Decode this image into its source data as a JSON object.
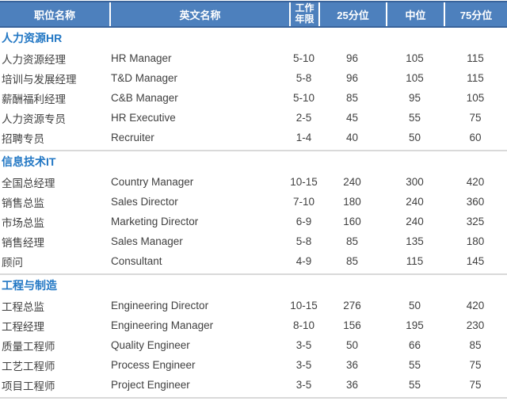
{
  "colors": {
    "header_fill": "#4d80bd",
    "header_edge": "#38639b",
    "header_divider": "#ffffff",
    "section_title_text": "#2277c4",
    "body_text": "#404040",
    "divider_line": "#d9d9d9"
  },
  "table": {
    "columns": [
      {
        "label": "职位名称"
      },
      {
        "label": "英文名称"
      },
      {
        "label": "工作年限"
      },
      {
        "label": "25分位"
      },
      {
        "label": "中位"
      },
      {
        "label": "75分位"
      }
    ],
    "sections": [
      {
        "name": "人力资源HR",
        "rows": [
          [
            "人力资源经理",
            "HR Manager",
            "5-10",
            "96",
            "105",
            "115"
          ],
          [
            "培训与发展经理",
            "T&D Manager",
            "5-8",
            "96",
            "105",
            "115"
          ],
          [
            "薪酬福利经理",
            "C&B Manager",
            "5-10",
            "85",
            "95",
            "105"
          ],
          [
            "人力资源专员",
            "HR Executive",
            "2-5",
            "45",
            "55",
            "75"
          ],
          [
            "招聘专员",
            "Recruiter",
            "1-4",
            "40",
            "50",
            "60"
          ]
        ]
      },
      {
        "name": "信息技术IT",
        "rows": [
          [
            "全国总经理",
            "Country Manager",
            "10-15",
            "240",
            "300",
            "420"
          ],
          [
            "销售总监",
            "Sales Director",
            "7-10",
            "180",
            "240",
            "360"
          ],
          [
            "市场总监",
            "Marketing Director",
            "6-9",
            "160",
            "240",
            "325"
          ],
          [
            "销售经理",
            "Sales Manager",
            "5-8",
            "85",
            "135",
            "180"
          ],
          [
            "顾问",
            "Consultant",
            "4-9",
            "85",
            "115",
            "145"
          ]
        ]
      },
      {
        "name": "工程与制造",
        "rows": [
          [
            "工程总监",
            "Engineering Director",
            "10-15",
            "276",
            "50",
            "420"
          ],
          [
            "工程经理",
            "Engineering Manager",
            "8-10",
            "156",
            "195",
            "230"
          ],
          [
            "质量工程师",
            "Quality Engineer",
            "3-5",
            "50",
            "66",
            "85"
          ],
          [
            "工艺工程师",
            "Process Engineer",
            "3-5",
            "36",
            "55",
            "75"
          ],
          [
            "项目工程师",
            "Project Engineer",
            "3-5",
            "36",
            "55",
            "75"
          ]
        ]
      }
    ]
  }
}
